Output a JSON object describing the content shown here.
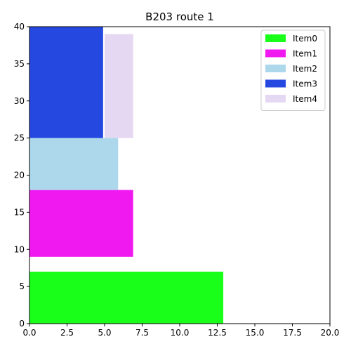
{
  "chart_data": {
    "type": "bar",
    "orientation": "horizontal",
    "title": "B203 route 1",
    "xlabel": "",
    "ylabel": "",
    "xlim": [
      0,
      20
    ],
    "ylim": [
      0,
      40
    ],
    "xticks": [
      "0.0",
      "2.5",
      "5.0",
      "7.5",
      "10.0",
      "12.5",
      "15.0",
      "17.5",
      "20.0"
    ],
    "yticks": [
      "0",
      "5",
      "10",
      "15",
      "20",
      "25",
      "30",
      "35",
      "40"
    ],
    "grid": false,
    "legend_position": "top-right",
    "series": [
      {
        "name": "Item0",
        "color": "#1aff1a",
        "y_start": 0,
        "y_end": 7,
        "x_start": 0,
        "x_end": 12.9
      },
      {
        "name": "Item1",
        "color": "#f01af0",
        "y_start": 9,
        "y_end": 18,
        "x_start": 0,
        "x_end": 6.9
      },
      {
        "name": "Item2",
        "color": "#add8ec",
        "y_start": 18,
        "y_end": 25,
        "x_start": 0,
        "x_end": 5.9
      },
      {
        "name": "Item3",
        "color": "#2448e0",
        "y_start": 25,
        "y_end": 40,
        "x_start": 0,
        "x_end": 4.9
      },
      {
        "name": "Item4",
        "color": "#e5d8f2",
        "y_start": 25,
        "y_end": 39,
        "x_start": 5.0,
        "x_end": 6.9
      }
    ]
  }
}
